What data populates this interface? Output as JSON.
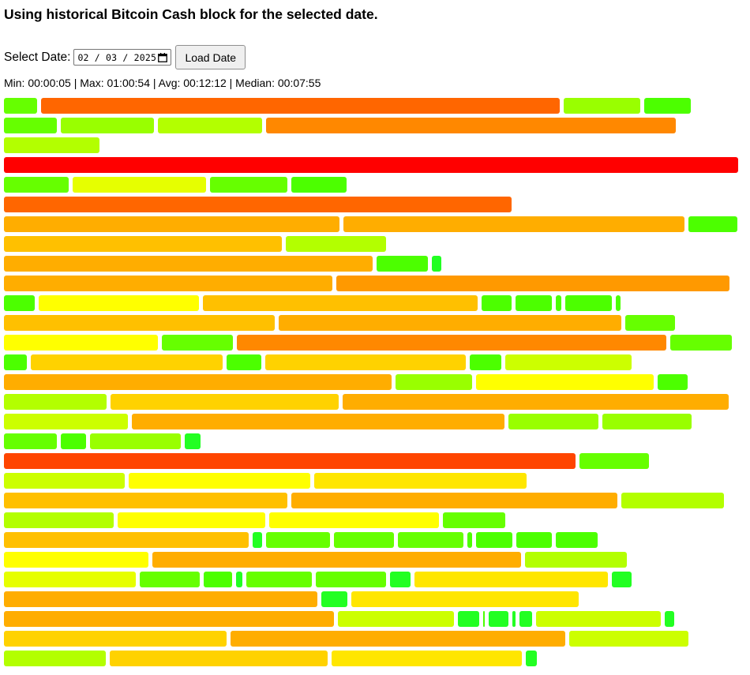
{
  "header": {
    "title": "Using historical Bitcoin Cash block for the selected date."
  },
  "controls": {
    "date_label": "Select Date:",
    "date_value": "02 / 03 / 2025",
    "load_button_label": "Load Date",
    "calendar_icon": "calendar-icon"
  },
  "stats": {
    "text": "Min: 00:00:05 | Max: 01:00:54 | Avg: 00:12:12 | Median: 00:07:55"
  },
  "colors": {
    "r": "#ff0000",
    "R": "#ff4500",
    "o": "#ff6600",
    "O": "#ff8800",
    "a": "#ff9900",
    "A": "#ffad00",
    "g": "#ffc000",
    "G": "#ffd200",
    "y": "#ffe600",
    "Y": "#ffff00",
    "l": "#e6ff00",
    "L": "#ccff00",
    "m": "#b3ff00",
    "M": "#99ff00",
    "n": "#80ff00",
    "N": "#66ff00",
    "e": "#4cff00",
    "E": "#22ff22"
  },
  "block_rows": [
    [
      [
        42,
        "N"
      ],
      [
        657,
        "o"
      ],
      [
        97,
        "M"
      ],
      [
        59,
        "e"
      ]
    ],
    [
      [
        67,
        "N"
      ],
      [
        118,
        "M"
      ],
      [
        132,
        "m"
      ],
      [
        519,
        "O"
      ]
    ],
    [
      [
        121,
        "m"
      ]
    ],
    [
      [
        930,
        "r"
      ]
    ],
    [
      [
        82,
        "N"
      ],
      [
        169,
        "l"
      ],
      [
        98,
        "N"
      ],
      [
        70,
        "e"
      ]
    ],
    [
      [
        643,
        "o"
      ]
    ],
    [
      [
        425,
        "A"
      ],
      [
        432,
        "A"
      ],
      [
        62,
        "e"
      ]
    ],
    [
      [
        352,
        "g"
      ],
      [
        127,
        "m"
      ]
    ],
    [
      [
        467,
        "A"
      ],
      [
        65,
        "e"
      ],
      [
        12,
        "E"
      ]
    ],
    [
      [
        416,
        "A"
      ],
      [
        498,
        "a"
      ]
    ],
    [
      [
        39,
        "e"
      ],
      [
        203,
        "Y"
      ],
      [
        348,
        "g"
      ],
      [
        38,
        "e"
      ],
      [
        46,
        "e"
      ],
      [
        7,
        "e"
      ],
      [
        59,
        "e"
      ],
      [
        6,
        "e"
      ]
    ],
    [
      [
        343,
        "g"
      ],
      [
        434,
        "A"
      ],
      [
        63,
        "N"
      ]
    ],
    [
      [
        195,
        "Y"
      ],
      [
        90,
        "N"
      ],
      [
        544,
        "O"
      ],
      [
        78,
        "N"
      ]
    ],
    [
      [
        29,
        "e"
      ],
      [
        243,
        "G"
      ],
      [
        44,
        "e"
      ],
      [
        254,
        "G"
      ],
      [
        40,
        "e"
      ],
      [
        160,
        "L"
      ]
    ],
    [
      [
        491,
        "A"
      ],
      [
        97,
        "M"
      ],
      [
        225,
        "Y"
      ],
      [
        38,
        "e"
      ]
    ],
    [
      [
        130,
        "m"
      ],
      [
        289,
        "G"
      ],
      [
        489,
        "A"
      ]
    ],
    [
      [
        157,
        "L"
      ],
      [
        472,
        "A"
      ],
      [
        114,
        "M"
      ],
      [
        113,
        "M"
      ]
    ],
    [
      [
        67,
        "N"
      ],
      [
        32,
        "e"
      ],
      [
        115,
        "M"
      ],
      [
        20,
        "E"
      ]
    ],
    [
      [
        724,
        "R"
      ],
      [
        88,
        "N"
      ]
    ],
    [
      [
        153,
        "L"
      ],
      [
        230,
        "Y"
      ],
      [
        269,
        "y"
      ]
    ],
    [
      [
        359,
        "g"
      ],
      [
        413,
        "A"
      ],
      [
        130,
        "m"
      ]
    ],
    [
      [
        139,
        "m"
      ],
      [
        187,
        "Y"
      ],
      [
        215,
        "Y"
      ],
      [
        79,
        "N"
      ]
    ],
    [
      [
        310,
        "g"
      ],
      [
        12,
        "E"
      ],
      [
        81,
        "N"
      ],
      [
        76,
        "N"
      ],
      [
        83,
        "N"
      ],
      [
        6,
        "e"
      ],
      [
        46,
        "e"
      ],
      [
        45,
        "e"
      ],
      [
        53,
        "e"
      ]
    ],
    [
      [
        183,
        "Y"
      ],
      [
        467,
        "A"
      ],
      [
        129,
        "m"
      ]
    ],
    [
      [
        167,
        "l"
      ],
      [
        76,
        "N"
      ],
      [
        36,
        "e"
      ],
      [
        8,
        "E"
      ],
      [
        83,
        "N"
      ],
      [
        89,
        "N"
      ],
      [
        26,
        "E"
      ],
      [
        245,
        "y"
      ],
      [
        25,
        "E"
      ]
    ],
    [
      [
        397,
        "A"
      ],
      [
        33,
        "E"
      ],
      [
        288,
        "y"
      ]
    ],
    [
      [
        418,
        "A"
      ],
      [
        147,
        "L"
      ],
      [
        27,
        "E"
      ],
      [
        2,
        "e"
      ],
      [
        25,
        "E"
      ],
      [
        4,
        "E"
      ],
      [
        16,
        "E"
      ],
      [
        158,
        "L"
      ],
      [
        12,
        "E"
      ]
    ],
    [
      [
        282,
        "G"
      ],
      [
        424,
        "A"
      ],
      [
        151,
        "L"
      ]
    ],
    [
      [
        129,
        "m"
      ],
      [
        276,
        "G"
      ],
      [
        241,
        "y"
      ],
      [
        14,
        "E"
      ]
    ]
  ]
}
